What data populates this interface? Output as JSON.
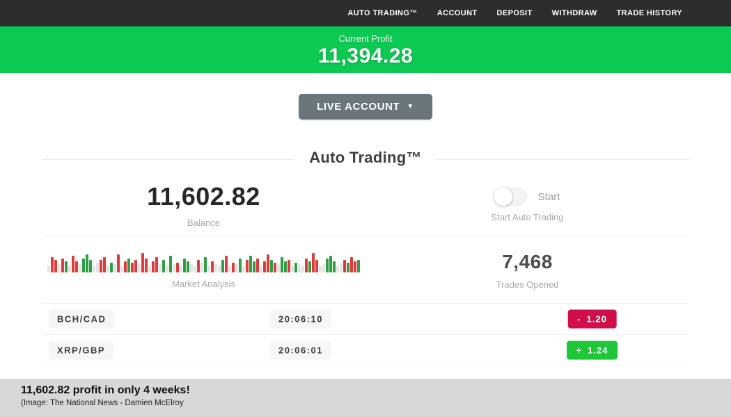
{
  "nav": {
    "items": [
      {
        "label": "AUTO TRADING™"
      },
      {
        "label": "ACCOUNT"
      },
      {
        "label": "DEPOSIT"
      },
      {
        "label": "WITHDRAW"
      },
      {
        "label": "TRADE HISTORY"
      }
    ]
  },
  "banner": {
    "label": "Current Profit",
    "value": "11,394.28"
  },
  "account_selector": {
    "label": "LIVE ACCOUNT",
    "caret": "▼"
  },
  "section": {
    "title": "Auto Trading™"
  },
  "stats": {
    "balance": {
      "value": "11,602.82",
      "label": "Balance"
    },
    "auto_trading": {
      "toggle_label": "Start",
      "label": "Start Auto Trading",
      "state": "off"
    },
    "market": {
      "label": "Market Analysis"
    },
    "trades": {
      "value": "7,468",
      "label": "Trades Opened"
    }
  },
  "chart_data": {
    "type": "bar",
    "title": "Market Analysis",
    "note": "decorative tick chart, colors r=red g=green n=neutral, heights in px of 30px max",
    "bars": [
      "n10",
      "r22",
      "r18",
      "n12",
      "r20",
      "g16",
      "n10",
      "r24",
      "r16",
      "n12",
      "g20",
      "g26",
      "g18",
      "n10",
      "n14",
      "r18",
      "r22",
      "n10",
      "g14",
      "n12",
      "r26",
      "n10",
      "r16",
      "g20",
      "r14",
      "r18",
      "n12",
      "r28",
      "r20",
      "n10",
      "r16",
      "r22",
      "n12",
      "g18",
      "n10",
      "g24",
      "n12",
      "r14",
      "n10",
      "g20",
      "g16",
      "n12",
      "n10",
      "r18",
      "n14",
      "g22",
      "n10",
      "r16",
      "n12",
      "n10",
      "g18",
      "r24",
      "n10",
      "r14",
      "n12",
      "g20",
      "n10",
      "r18",
      "g24",
      "g16",
      "r20",
      "n10",
      "r16",
      "r26",
      "g18",
      "r14",
      "n12",
      "g22",
      "g16",
      "r18",
      "n10",
      "g14",
      "n12",
      "n10",
      "r20",
      "g16",
      "r28",
      "r18",
      "n10",
      "n12",
      "g20",
      "g24",
      "g16",
      "n10",
      "n12",
      "r18",
      "g14",
      "r22",
      "r16",
      "g18"
    ]
  },
  "trades_table": {
    "rows": [
      {
        "pair": "BCH/CAD",
        "time": "20:06:10",
        "sign": "-",
        "amount": "1.20",
        "direction": "down"
      },
      {
        "pair": "XRP/GBP",
        "time": "20:06:01",
        "sign": "+",
        "amount": "1.24",
        "direction": "up"
      }
    ]
  },
  "caption": {
    "headline": "11,602.82 profit in only 4 weeks!",
    "credit": "(Image:  The National News - Damien McElroy"
  },
  "colors": {
    "green": "#0cc952",
    "red": "#d00f4a",
    "badge_green": "#1ec738",
    "bar_red": "#e03a3a",
    "bar_green": "#2f9e44",
    "bar_neutral": "#e4e4e4",
    "navbar_bg": "#2d2d2d",
    "caption_bg": "#d8d8d8"
  }
}
